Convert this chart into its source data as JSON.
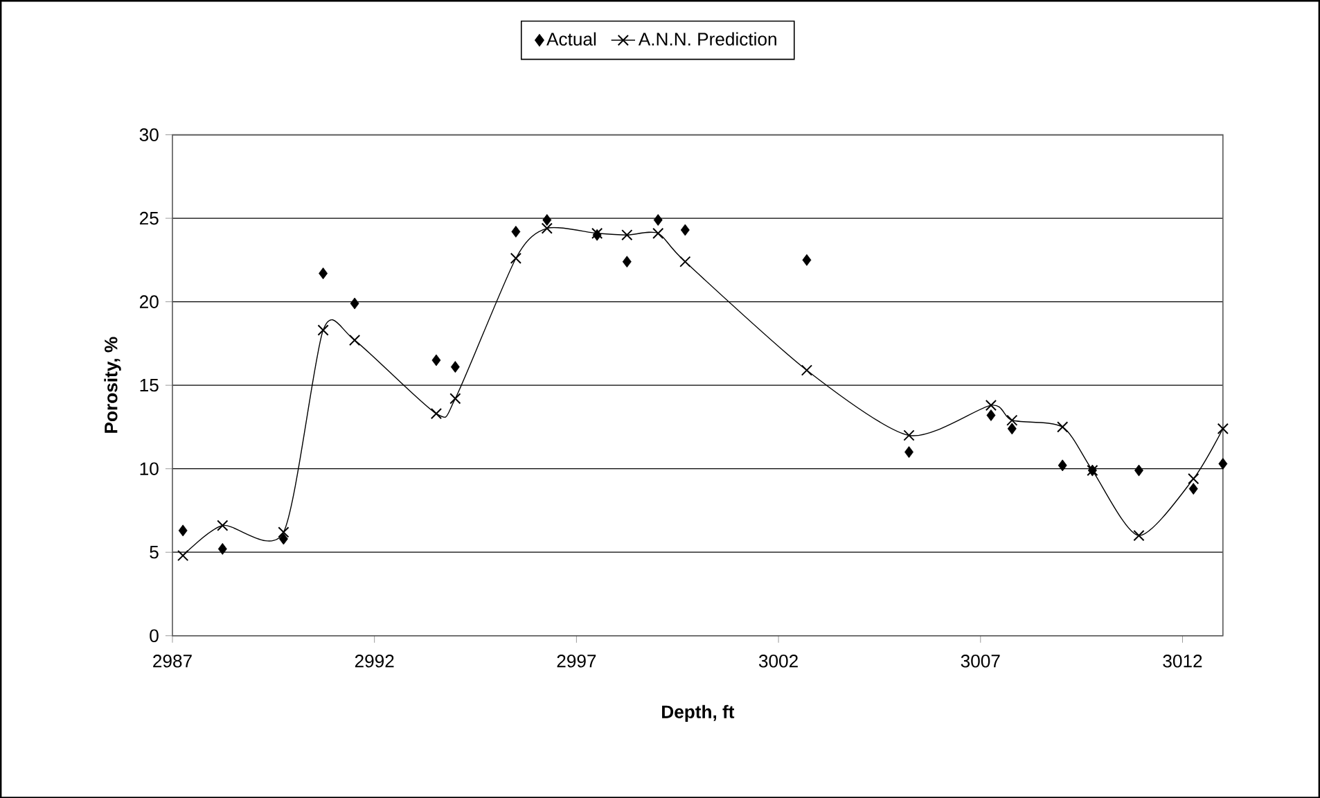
{
  "chart_data": {
    "type": "scatter",
    "xlabel": "Depth, ft",
    "ylabel": "Porosity, %",
    "xlim": [
      2987,
      3013
    ],
    "xticks": [
      2987,
      2992,
      2997,
      3002,
      3007,
      3012
    ],
    "ylim": [
      0,
      30
    ],
    "yticks": [
      0,
      5,
      10,
      15,
      20,
      25,
      30
    ],
    "grid": "y",
    "legend": "top",
    "series": [
      {
        "name": "Actual",
        "marker": "diamond",
        "color": "#000000",
        "x": [
          2987.26,
          2988.24,
          2989.75,
          2990.73,
          2991.51,
          2993.53,
          2994.0,
          2995.5,
          2996.27,
          2997.51,
          2998.25,
          2999.02,
          2999.69,
          3002.7,
          3005.23,
          3007.26,
          3007.78,
          3009.03,
          3009.77,
          3010.92,
          3012.27,
          3013.0
        ],
        "values": [
          6.3,
          5.2,
          5.8,
          21.7,
          19.9,
          16.5,
          16.1,
          24.2,
          24.9,
          24.0,
          22.4,
          24.9,
          24.3,
          22.5,
          11.0,
          13.2,
          12.4,
          10.2,
          9.9,
          9.9,
          8.8,
          10.3
        ]
      },
      {
        "name": "A.N.N. Prediction",
        "type": "line",
        "marker": "cross",
        "color": "#000000",
        "x": [
          2987.26,
          2988.24,
          2989.75,
          2990.73,
          2991.51,
          2993.53,
          2994.0,
          2995.5,
          2996.27,
          2997.51,
          2998.25,
          2999.02,
          2999.69,
          3002.7,
          3005.23,
          3007.26,
          3007.78,
          3009.03,
          3009.77,
          3010.92,
          3012.27,
          3013.0
        ],
        "values": [
          4.8,
          6.6,
          6.2,
          18.3,
          17.7,
          13.3,
          14.2,
          22.6,
          24.4,
          24.1,
          24.0,
          24.1,
          22.4,
          15.9,
          12.0,
          13.8,
          12.9,
          12.5,
          9.9,
          6.0,
          9.4,
          12.4
        ]
      }
    ]
  }
}
